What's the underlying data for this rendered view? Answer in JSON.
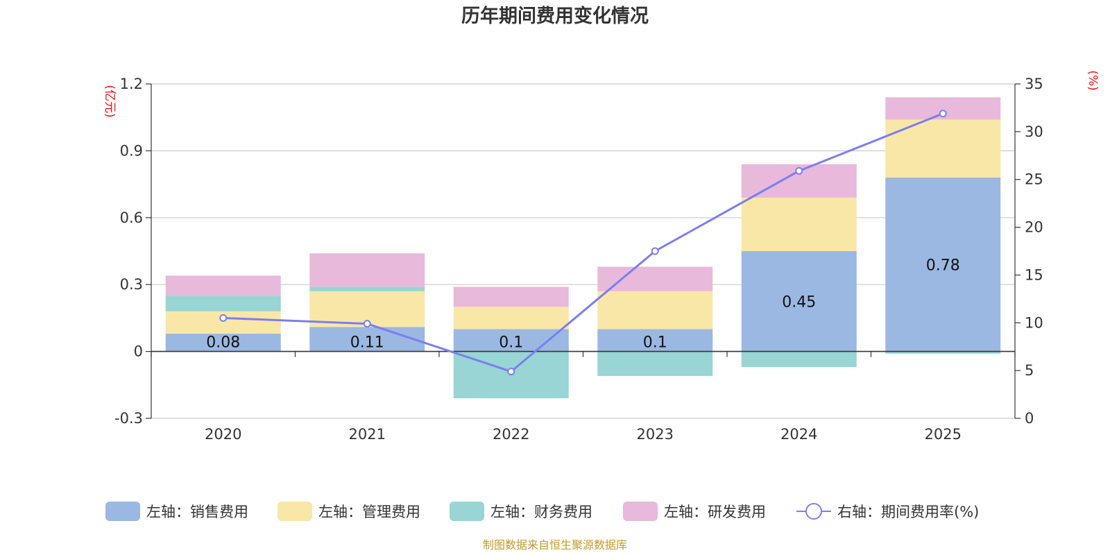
{
  "chart_data": {
    "type": "bar",
    "title": "历年期间费用变化情况",
    "categories": [
      "2020",
      "2021",
      "2022",
      "2023",
      "2024",
      "2025"
    ],
    "left_axis": {
      "unit": "(亿元)",
      "ylim": [
        -0.3,
        1.2
      ],
      "ticks": [
        -0.3,
        0,
        0.3,
        0.6,
        0.9,
        1.2
      ],
      "tick_labels": [
        "-0.3",
        "0",
        "0.3",
        "0.6",
        "0.9",
        "1.2"
      ]
    },
    "right_axis": {
      "unit": "(%)",
      "ylim": [
        0,
        35
      ],
      "ticks": [
        0,
        5,
        10,
        15,
        20,
        25,
        30,
        35
      ],
      "tick_labels": [
        "0",
        "5",
        "10",
        "15",
        "20",
        "25",
        "30",
        "35"
      ]
    },
    "series": [
      {
        "name": "左轴：销售费用",
        "type": "bar",
        "axis": "left",
        "color": "#9bb8e2",
        "values": [
          0.08,
          0.11,
          0.1,
          0.1,
          0.45,
          0.78
        ],
        "labels": [
          "0.08",
          "0.11",
          "0.1",
          "0.1",
          "0.45",
          "0.78"
        ]
      },
      {
        "name": "左轴：管理费用",
        "type": "bar",
        "axis": "left",
        "color": "#f9e7a7",
        "values": [
          0.1,
          0.16,
          0.1,
          0.17,
          0.24,
          0.26
        ]
      },
      {
        "name": "左轴：财务费用",
        "type": "bar",
        "axis": "left",
        "color": "#98d5d4",
        "values": [
          0.07,
          0.02,
          -0.21,
          -0.11,
          -0.07,
          -0.01
        ]
      },
      {
        "name": "左轴：研发费用",
        "type": "bar",
        "axis": "left",
        "color": "#e8b9da",
        "values": [
          0.09,
          0.15,
          0.09,
          0.11,
          0.15,
          0.1
        ]
      },
      {
        "name": "右轴：期间费用率(%)",
        "type": "line",
        "axis": "right",
        "color": "#7b7ef0",
        "values": [
          10.5,
          9.9,
          4.9,
          17.5,
          25.9,
          31.9
        ]
      }
    ],
    "source": "制图数据来自恒生聚源数据库"
  }
}
